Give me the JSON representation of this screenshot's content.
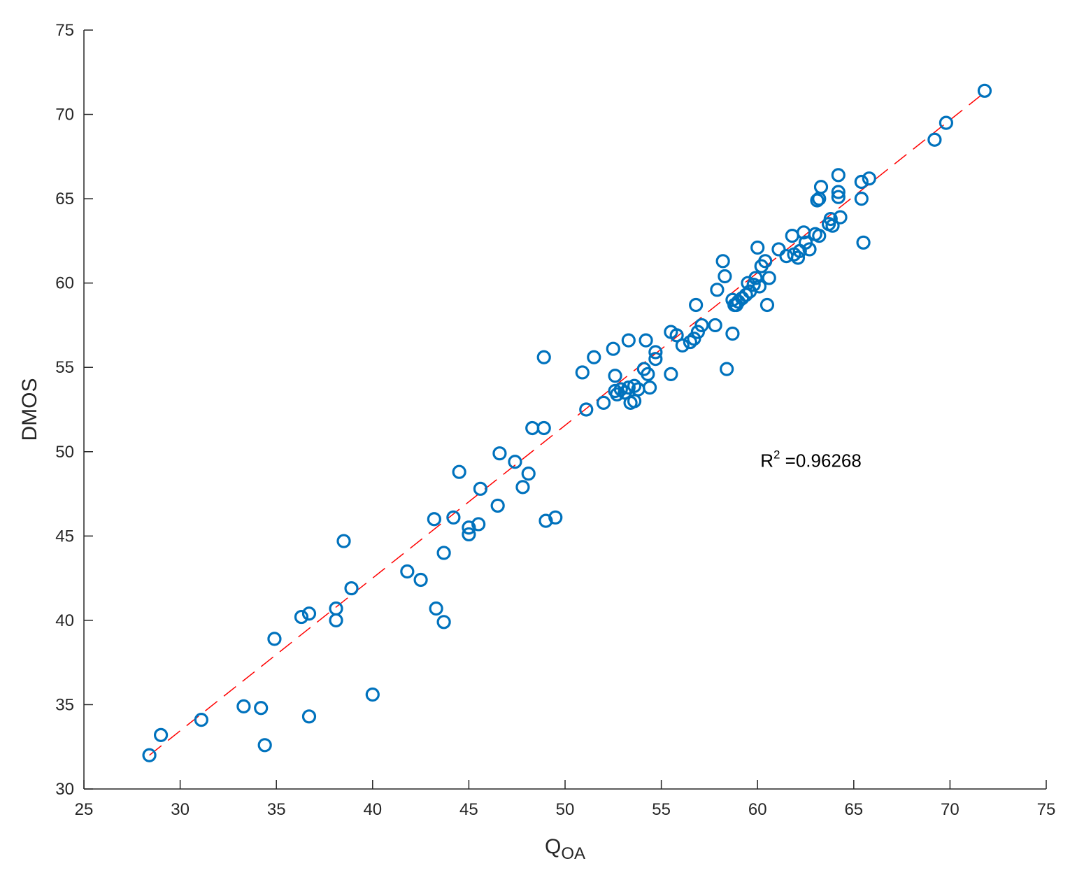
{
  "chart_data": {
    "type": "scatter",
    "title": "",
    "xlabel": "Q",
    "xlabel_sub": "OA",
    "ylabel": "DMOS",
    "xlim": [
      25,
      75
    ],
    "ylim": [
      30,
      75
    ],
    "xticks": [
      25,
      30,
      35,
      40,
      45,
      50,
      55,
      60,
      65,
      70,
      75
    ],
    "yticks": [
      30,
      35,
      40,
      45,
      50,
      55,
      60,
      65,
      70,
      75
    ],
    "grid": false,
    "annotation": {
      "prefix": "R",
      "sup": "2",
      "text": " =0.96268",
      "x": 60,
      "y": 49.6
    },
    "fit_line": {
      "style": "dashed",
      "color": "#ff0000",
      "x": [
        28.4,
        71.8
      ],
      "y": [
        32.0,
        71.3
      ]
    },
    "marker_color": "#0072bd",
    "points": [
      [
        28.4,
        32.0
      ],
      [
        29.0,
        33.2
      ],
      [
        31.1,
        34.1
      ],
      [
        33.3,
        34.9
      ],
      [
        34.2,
        34.8
      ],
      [
        34.4,
        32.6
      ],
      [
        36.7,
        34.3
      ],
      [
        40.0,
        35.6
      ],
      [
        34.9,
        38.9
      ],
      [
        36.3,
        40.2
      ],
      [
        36.7,
        40.4
      ],
      [
        38.1,
        40.7
      ],
      [
        38.1,
        40.0
      ],
      [
        38.9,
        41.9
      ],
      [
        38.5,
        44.7
      ],
      [
        41.8,
        42.9
      ],
      [
        42.5,
        42.4
      ],
      [
        43.3,
        40.7
      ],
      [
        43.7,
        39.9
      ],
      [
        43.7,
        44.0
      ],
      [
        43.2,
        46.0
      ],
      [
        44.2,
        46.1
      ],
      [
        45.0,
        45.5
      ],
      [
        45.0,
        45.1
      ],
      [
        45.5,
        45.7
      ],
      [
        44.5,
        48.8
      ],
      [
        45.6,
        47.8
      ],
      [
        46.5,
        46.8
      ],
      [
        46.6,
        49.9
      ],
      [
        47.4,
        49.4
      ],
      [
        47.8,
        47.9
      ],
      [
        48.1,
        48.7
      ],
      [
        48.3,
        51.4
      ],
      [
        48.9,
        51.4
      ],
      [
        48.9,
        55.6
      ],
      [
        49.0,
        45.9
      ],
      [
        49.5,
        46.1
      ],
      [
        50.9,
        54.7
      ],
      [
        51.1,
        52.5
      ],
      [
        51.5,
        55.6
      ],
      [
        52.0,
        52.9
      ],
      [
        52.5,
        56.1
      ],
      [
        52.6,
        54.5
      ],
      [
        52.6,
        53.6
      ],
      [
        52.7,
        53.4
      ],
      [
        52.9,
        53.7
      ],
      [
        53.1,
        53.5
      ],
      [
        53.3,
        56.6
      ],
      [
        53.3,
        53.8
      ],
      [
        53.4,
        52.9
      ],
      [
        53.6,
        53.0
      ],
      [
        53.6,
        53.9
      ],
      [
        53.8,
        53.7
      ],
      [
        54.1,
        54.9
      ],
      [
        54.2,
        56.6
      ],
      [
        54.3,
        54.6
      ],
      [
        54.4,
        53.8
      ],
      [
        54.7,
        55.5
      ],
      [
        54.7,
        55.9
      ],
      [
        55.5,
        54.6
      ],
      [
        55.5,
        57.1
      ],
      [
        55.8,
        56.9
      ],
      [
        56.1,
        56.3
      ],
      [
        56.5,
        56.5
      ],
      [
        56.7,
        56.7
      ],
      [
        56.8,
        58.7
      ],
      [
        56.9,
        57.1
      ],
      [
        57.1,
        57.5
      ],
      [
        57.8,
        57.5
      ],
      [
        57.9,
        59.6
      ],
      [
        58.2,
        61.3
      ],
      [
        58.3,
        60.4
      ],
      [
        58.4,
        54.9
      ],
      [
        58.7,
        57.0
      ],
      [
        58.7,
        59.0
      ],
      [
        58.8,
        58.7
      ],
      [
        58.9,
        58.7
      ],
      [
        59.0,
        58.9
      ],
      [
        59.2,
        59.1
      ],
      [
        59.4,
        59.3
      ],
      [
        59.5,
        60.0
      ],
      [
        59.6,
        59.5
      ],
      [
        59.8,
        59.9
      ],
      [
        59.9,
        60.3
      ],
      [
        60.0,
        62.1
      ],
      [
        60.1,
        59.8
      ],
      [
        60.2,
        61.0
      ],
      [
        60.4,
        61.3
      ],
      [
        60.5,
        58.7
      ],
      [
        60.6,
        60.3
      ],
      [
        61.1,
        62.0
      ],
      [
        61.5,
        61.6
      ],
      [
        61.8,
        62.8
      ],
      [
        61.9,
        61.7
      ],
      [
        62.1,
        61.5
      ],
      [
        62.2,
        61.9
      ],
      [
        62.4,
        63.0
      ],
      [
        62.5,
        62.4
      ],
      [
        62.7,
        62.0
      ],
      [
        63.0,
        62.9
      ],
      [
        63.1,
        64.9
      ],
      [
        63.2,
        65.0
      ],
      [
        63.2,
        62.8
      ],
      [
        63.3,
        65.7
      ],
      [
        63.7,
        63.5
      ],
      [
        63.8,
        63.8
      ],
      [
        63.9,
        63.4
      ],
      [
        64.2,
        65.4
      ],
      [
        64.2,
        65.1
      ],
      [
        64.2,
        66.4
      ],
      [
        64.3,
        63.9
      ],
      [
        65.4,
        65.0
      ],
      [
        65.4,
        66.0
      ],
      [
        65.5,
        62.4
      ],
      [
        65.8,
        66.2
      ],
      [
        69.2,
        68.5
      ],
      [
        69.8,
        69.5
      ],
      [
        71.8,
        71.4
      ]
    ]
  }
}
